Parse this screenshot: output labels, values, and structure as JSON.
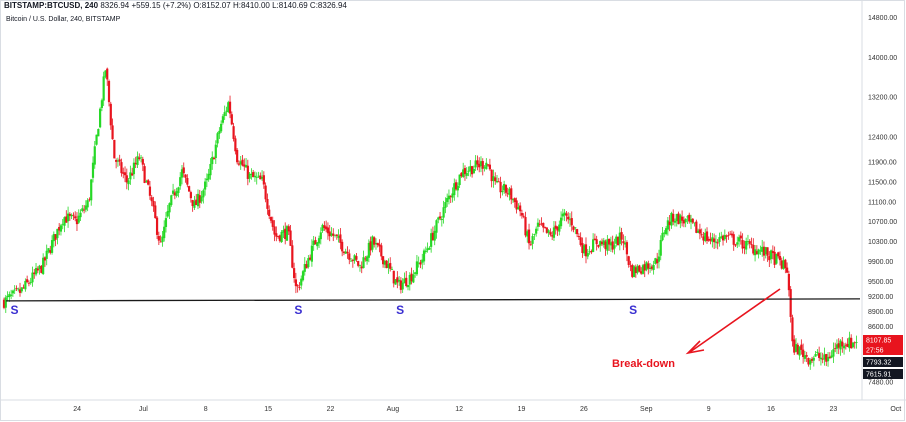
{
  "header": {
    "symbol": "BITSTAMP:BTCUSD, 240",
    "last": "8326.94",
    "change": "+559.15 (+7.2%)",
    "open_label": "O:",
    "open": "8152.07",
    "high_label": "H:",
    "high": "8410.00",
    "low_label": "L:",
    "low": "8140.69",
    "close_label": "C:",
    "close": "8326.94"
  },
  "subtitle": "Bitcoin / U.S. Dollar, 240, BITSTAMP",
  "colors": {
    "up": "#26d826",
    "down": "#e8141e",
    "support": "#1a1a1a",
    "annotation": "#e8141e",
    "marker": "#3a2fd1",
    "grid_border": "#d9dde3"
  },
  "chart_data": {
    "type": "candlestick",
    "title": "",
    "y_axis": {
      "side": "right",
      "ylim": [
        7200,
        14950
      ],
      "ticks": [
        14800,
        14000,
        13200,
        12400,
        11900,
        11500,
        11100,
        10700,
        10300,
        9900,
        9500,
        9200,
        8900,
        8600,
        8300,
        7480
      ]
    },
    "x_axis": {
      "tick_labels": [
        "24",
        "Jul",
        "8",
        "15",
        "22",
        "Aug",
        "12",
        "19",
        "26",
        "Sep",
        "9",
        "16",
        "23",
        "Oct"
      ]
    },
    "price_path": [
      [
        0,
        9100
      ],
      [
        4,
        9300
      ],
      [
        9,
        9800
      ],
      [
        14,
        10800
      ],
      [
        17,
        10700
      ],
      [
        20,
        11100
      ],
      [
        22,
        12500
      ],
      [
        24,
        13800
      ],
      [
        26,
        12000
      ],
      [
        29,
        11500
      ],
      [
        32,
        12000
      ],
      [
        35,
        11000
      ],
      [
        37,
        10200
      ],
      [
        39,
        11000
      ],
      [
        42,
        11700
      ],
      [
        45,
        11000
      ],
      [
        48,
        11500
      ],
      [
        51,
        12600
      ],
      [
        53,
        13100
      ],
      [
        55,
        12000
      ],
      [
        58,
        11600
      ],
      [
        61,
        11500
      ],
      [
        64,
        10400
      ],
      [
        67,
        10500
      ],
      [
        69,
        9300
      ],
      [
        72,
        10000
      ],
      [
        75,
        10600
      ],
      [
        78,
        10400
      ],
      [
        81,
        10100
      ],
      [
        84,
        9800
      ],
      [
        87,
        10300
      ],
      [
        90,
        9900
      ],
      [
        93,
        9400
      ],
      [
        96,
        9600
      ],
      [
        99,
        10000
      ],
      [
        102,
        10600
      ],
      [
        105,
        11200
      ],
      [
        108,
        11700
      ],
      [
        111,
        11800
      ],
      [
        114,
        11900
      ],
      [
        116,
        11400
      ],
      [
        119,
        11300
      ],
      [
        122,
        10900
      ],
      [
        124,
        10200
      ],
      [
        126,
        10600
      ],
      [
        129,
        10400
      ],
      [
        132,
        10800
      ],
      [
        134,
        10700
      ],
      [
        137,
        10100
      ],
      [
        140,
        10300
      ],
      [
        143,
        10200
      ],
      [
        146,
        10400
      ],
      [
        148,
        9700
      ],
      [
        151,
        9800
      ],
      [
        154,
        9900
      ],
      [
        156,
        10600
      ],
      [
        158,
        10800
      ],
      [
        161,
        10700
      ],
      [
        164,
        10500
      ],
      [
        167,
        10300
      ],
      [
        170,
        10400
      ],
      [
        173,
        10300
      ],
      [
        176,
        10200
      ],
      [
        179,
        10100
      ],
      [
        181,
        10000
      ],
      [
        183,
        9900
      ],
      [
        185,
        9700
      ],
      [
        186,
        8200
      ],
      [
        188,
        8100
      ],
      [
        190,
        7950
      ],
      [
        192,
        8000
      ],
      [
        194,
        7900
      ],
      [
        196,
        8150
      ],
      [
        198,
        8300
      ],
      [
        200,
        8250
      ],
      [
        201,
        8326.94
      ]
    ],
    "support_line": {
      "value": 9110
    },
    "series": [
      {
        "name": "",
        "type": "candlestick"
      }
    ],
    "price_labels": [
      {
        "text": "8107.85",
        "style": "red",
        "value": 8107.85
      },
      {
        "text": "27:56",
        "style": "red",
        "value": 7990
      },
      {
        "text": "7793.32",
        "style": "black",
        "value": 7793.32
      },
      {
        "text": "7615.91",
        "style": "black",
        "value": 7615.91
      }
    ],
    "annotations": {
      "support_markers": [
        {
          "text": "S",
          "t": 2
        },
        {
          "text": "S",
          "t": 69
        },
        {
          "text": "S",
          "t": 93
        },
        {
          "text": "S",
          "t": 148
        }
      ],
      "breakdown_label": "Break-down"
    }
  }
}
